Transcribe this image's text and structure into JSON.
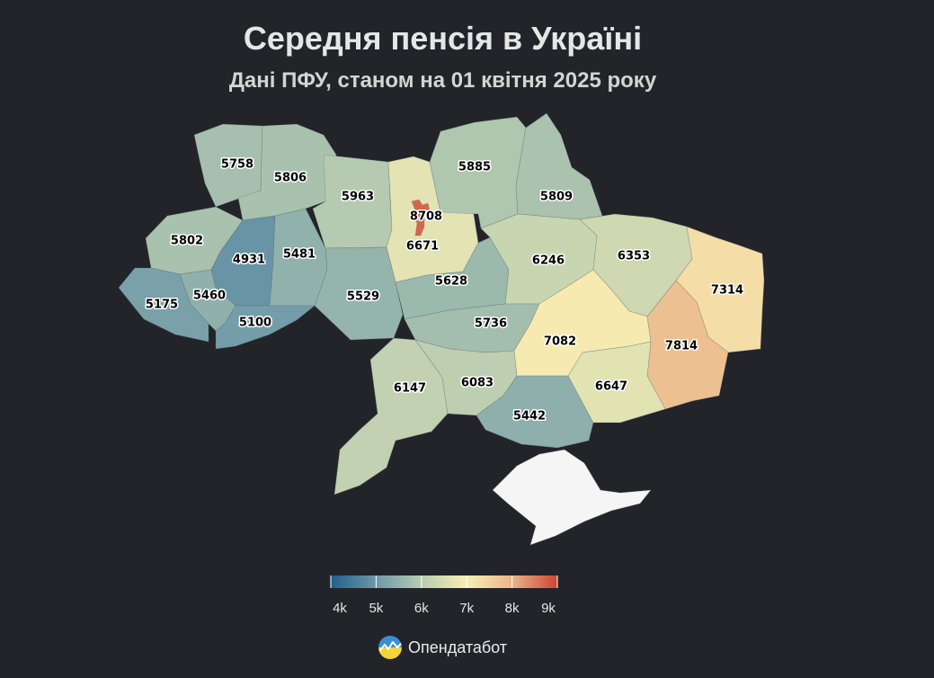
{
  "title": "Середня пенсія в Україні",
  "subtitle": "Дані ПФУ, станом на 01 квітня 2025 року",
  "chart_data": {
    "type": "choropleth",
    "title": "Середня пенсія в Україні",
    "subtitle": "Дані ПФУ, станом на 01 квітня 2025 року",
    "regions": [
      {
        "name": "Волинська",
        "value": 5758
      },
      {
        "name": "Рівненська",
        "value": 5806
      },
      {
        "name": "Житомирська",
        "value": 5963
      },
      {
        "name": "Київська",
        "value": 6671
      },
      {
        "name": "м. Київ",
        "value": 8708
      },
      {
        "name": "Чернігівська",
        "value": 5885
      },
      {
        "name": "Сумська",
        "value": 5809
      },
      {
        "name": "Львівська",
        "value": 5802
      },
      {
        "name": "Тернопільська",
        "value": 4931
      },
      {
        "name": "Хмельницька",
        "value": 5481
      },
      {
        "name": "Вінницька",
        "value": 5529
      },
      {
        "name": "Черкаська",
        "value": 5628
      },
      {
        "name": "Полтавська",
        "value": 6246
      },
      {
        "name": "Харківська",
        "value": 6353
      },
      {
        "name": "Луганська",
        "value": 7314
      },
      {
        "name": "Закарпатська",
        "value": 5175
      },
      {
        "name": "Івано-Франківська",
        "value": 5460
      },
      {
        "name": "Чернівецька",
        "value": 5100
      },
      {
        "name": "Кіровоградська",
        "value": 5736
      },
      {
        "name": "Дніпропетровська",
        "value": 7082
      },
      {
        "name": "Донецька",
        "value": 7814
      },
      {
        "name": "Одеська",
        "value": 6147
      },
      {
        "name": "Миколаївська",
        "value": 6083
      },
      {
        "name": "Херсонська",
        "value": 5442
      },
      {
        "name": "Запорізька",
        "value": 6647
      },
      {
        "name": "Крим",
        "value": null
      }
    ],
    "scale": {
      "min": 4000,
      "max": 9000,
      "tick_values": [
        4000,
        5000,
        6000,
        7000,
        8000,
        9000
      ],
      "tick_labels": [
        "4k",
        "5k",
        "6k",
        "7k",
        "8k",
        "9k"
      ],
      "colors": [
        "#1f5f8f",
        "#6d98a8",
        "#b8ccb0",
        "#f8efb4",
        "#eab58a",
        "#cc4534"
      ]
    },
    "no_data_color": "#f5f5f5"
  },
  "brand": {
    "name": "Опендатабот",
    "colors": [
      "#3b8fd1",
      "#f5d33c"
    ]
  }
}
